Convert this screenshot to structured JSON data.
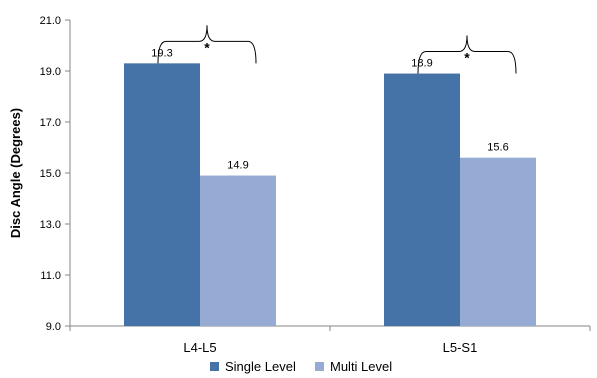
{
  "chart_data": {
    "type": "bar",
    "title": "",
    "xlabel": "",
    "ylabel": "Disc Angle (Degrees)",
    "categories": [
      "L4-L5",
      "L5-S1"
    ],
    "series": [
      {
        "name": "Single Level",
        "values": [
          19.3,
          18.9
        ],
        "labels": [
          "19.3",
          "18.9"
        ],
        "color": "#4572A7"
      },
      {
        "name": "Multi Level",
        "values": [
          14.9,
          15.6
        ],
        "labels": [
          "14.9",
          "15.6"
        ],
        "color": "#95ABD3"
      }
    ],
    "ylim": [
      9.0,
      21.0
    ],
    "yticks": [
      "9.0",
      "11.0",
      "13.0",
      "15.0",
      "17.0",
      "19.0",
      "21.0"
    ],
    "grid": false,
    "legend_position": "bottom",
    "significance_marker": "*",
    "significance_categories": [
      "L4-L5",
      "L5-S1"
    ]
  }
}
